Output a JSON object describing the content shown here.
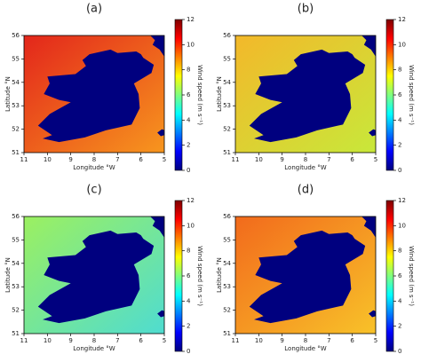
{
  "chart_data": [
    {
      "type": "map",
      "title": "(a)",
      "xlabel": "Longitude °W",
      "ylabel": "Latitude °N",
      "xlim": [
        11,
        5
      ],
      "ylim": [
        51,
        56
      ],
      "xticks": [
        11,
        10,
        9,
        8,
        7,
        6,
        5
      ],
      "yticks": [
        51,
        52,
        53,
        54,
        55,
        56
      ],
      "sea_colors": [
        "#e3261b",
        "#f7961e"
      ],
      "land_color": "#00007f",
      "colorbar": {
        "label": "Wind speed (m s⁻¹)",
        "lim": [
          0,
          12
        ],
        "ticks": [
          0,
          2,
          4,
          6,
          8,
          10,
          12
        ],
        "colors": [
          "#00007f",
          "#0000ff",
          "#007fff",
          "#00ffff",
          "#7fff7f",
          "#ffff00",
          "#ff7f00",
          "#ff0000",
          "#7f0000"
        ]
      }
    },
    {
      "type": "map",
      "title": "(b)",
      "xlabel": "Longitude °W",
      "ylabel": "Latitude °N",
      "xlim": [
        11,
        5
      ],
      "ylim": [
        51,
        56
      ],
      "xticks": [
        11,
        10,
        9,
        8,
        7,
        6,
        5
      ],
      "yticks": [
        51,
        52,
        53,
        54,
        55,
        56
      ],
      "sea_colors": [
        "#f3b82a",
        "#c8e83a"
      ],
      "land_color": "#00007f",
      "colorbar": {
        "label": "Wind speed (m s⁻¹)",
        "lim": [
          0,
          12
        ],
        "ticks": [
          0,
          2,
          4,
          6,
          8,
          10,
          12
        ],
        "colors": [
          "#00007f",
          "#0000ff",
          "#007fff",
          "#00ffff",
          "#7fff7f",
          "#ffff00",
          "#ff7f00",
          "#ff0000",
          "#7f0000"
        ]
      }
    },
    {
      "type": "map",
      "title": "(c)",
      "xlabel": "Longitude °W",
      "ylabel": "Latitude °N",
      "xlim": [
        11,
        5
      ],
      "ylim": [
        51,
        56
      ],
      "xticks": [
        11,
        10,
        9,
        8,
        7,
        6,
        5
      ],
      "yticks": [
        51,
        52,
        53,
        54,
        55,
        56
      ],
      "sea_colors": [
        "#9cf060",
        "#4fdcd0"
      ],
      "land_color": "#00007f",
      "colorbar": {
        "label": "Wind speed (m s⁻¹)",
        "lim": [
          0,
          12
        ],
        "ticks": [
          0,
          2,
          4,
          6,
          8,
          10,
          12
        ],
        "colors": [
          "#00007f",
          "#0000ff",
          "#007fff",
          "#00ffff",
          "#7fff7f",
          "#ffff00",
          "#ff7f00",
          "#ff0000",
          "#7f0000"
        ]
      }
    },
    {
      "type": "map",
      "title": "(d)",
      "xlabel": "Longitude °W",
      "ylabel": "Latitude °N",
      "xlim": [
        11,
        5
      ],
      "ylim": [
        51,
        56
      ],
      "xticks": [
        11,
        10,
        9,
        8,
        7,
        6,
        5
      ],
      "yticks": [
        51,
        52,
        53,
        54,
        55,
        56
      ],
      "sea_colors": [
        "#f26a1c",
        "#f8c229"
      ],
      "land_color": "#00007f",
      "colorbar": {
        "label": "Wind speed (m s⁻¹)",
        "lim": [
          0,
          12
        ],
        "ticks": [
          0,
          2,
          4,
          6,
          8,
          10,
          12
        ],
        "colors": [
          "#00007f",
          "#0000ff",
          "#007fff",
          "#00ffff",
          "#7fff7f",
          "#ffff00",
          "#ff7f00",
          "#ff0000",
          "#7f0000"
        ]
      }
    }
  ]
}
